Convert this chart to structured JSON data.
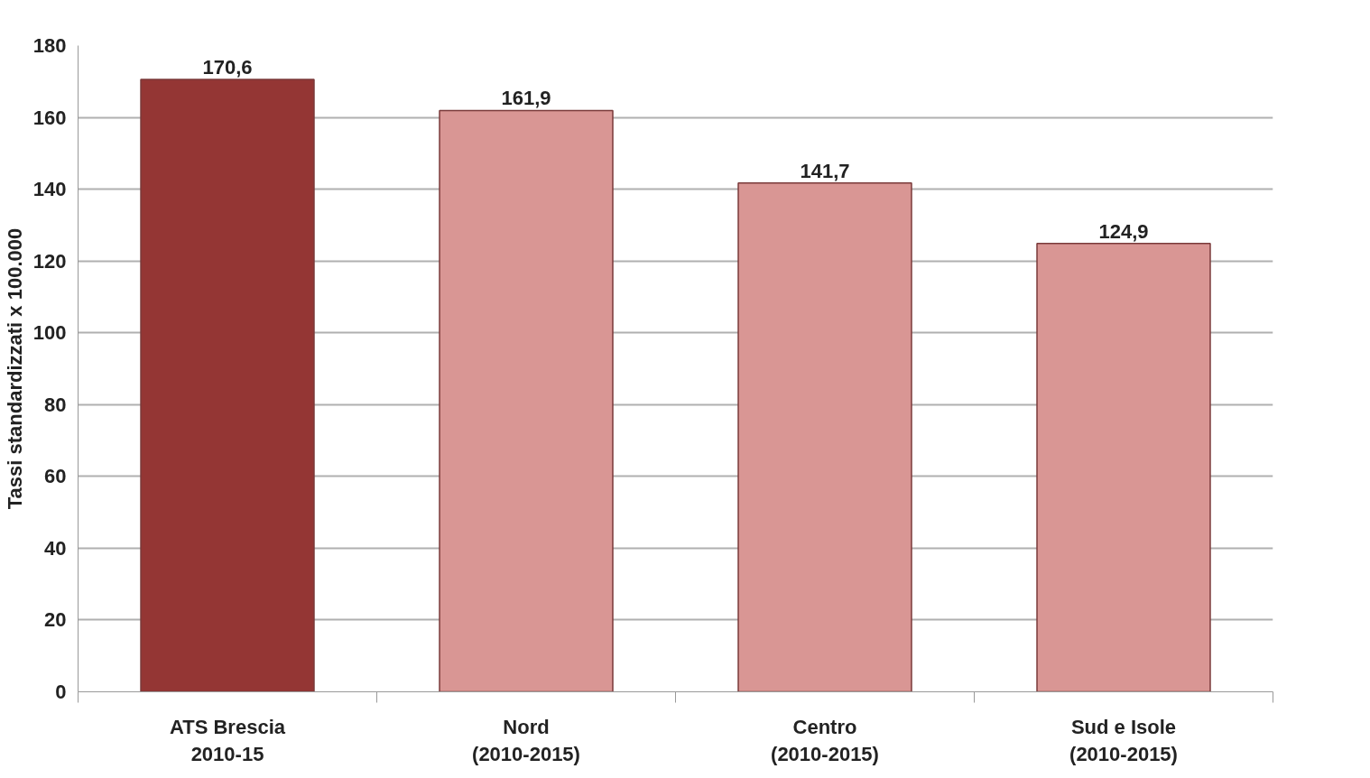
{
  "chart_data": {
    "type": "bar",
    "ylabel": "Tassi standardizzati x 100.000",
    "categories": [
      "ATS Brescia\n2010-15",
      "Nord\n(2010-2015)",
      "Centro\n(2010-2015)",
      "Sud e Isole\n(2010-2015)"
    ],
    "values": [
      170.6,
      161.9,
      141.7,
      124.9
    ],
    "colors": [
      "#943634",
      "#d99694",
      "#d99694",
      "#d99694"
    ],
    "value_labels": [
      "170,6",
      "161,9",
      "141,7",
      "124,9"
    ],
    "ylim": [
      0,
      180
    ],
    "yticks": [
      0,
      20,
      40,
      60,
      80,
      100,
      120,
      140,
      160,
      180
    ],
    "grid": "y"
  }
}
